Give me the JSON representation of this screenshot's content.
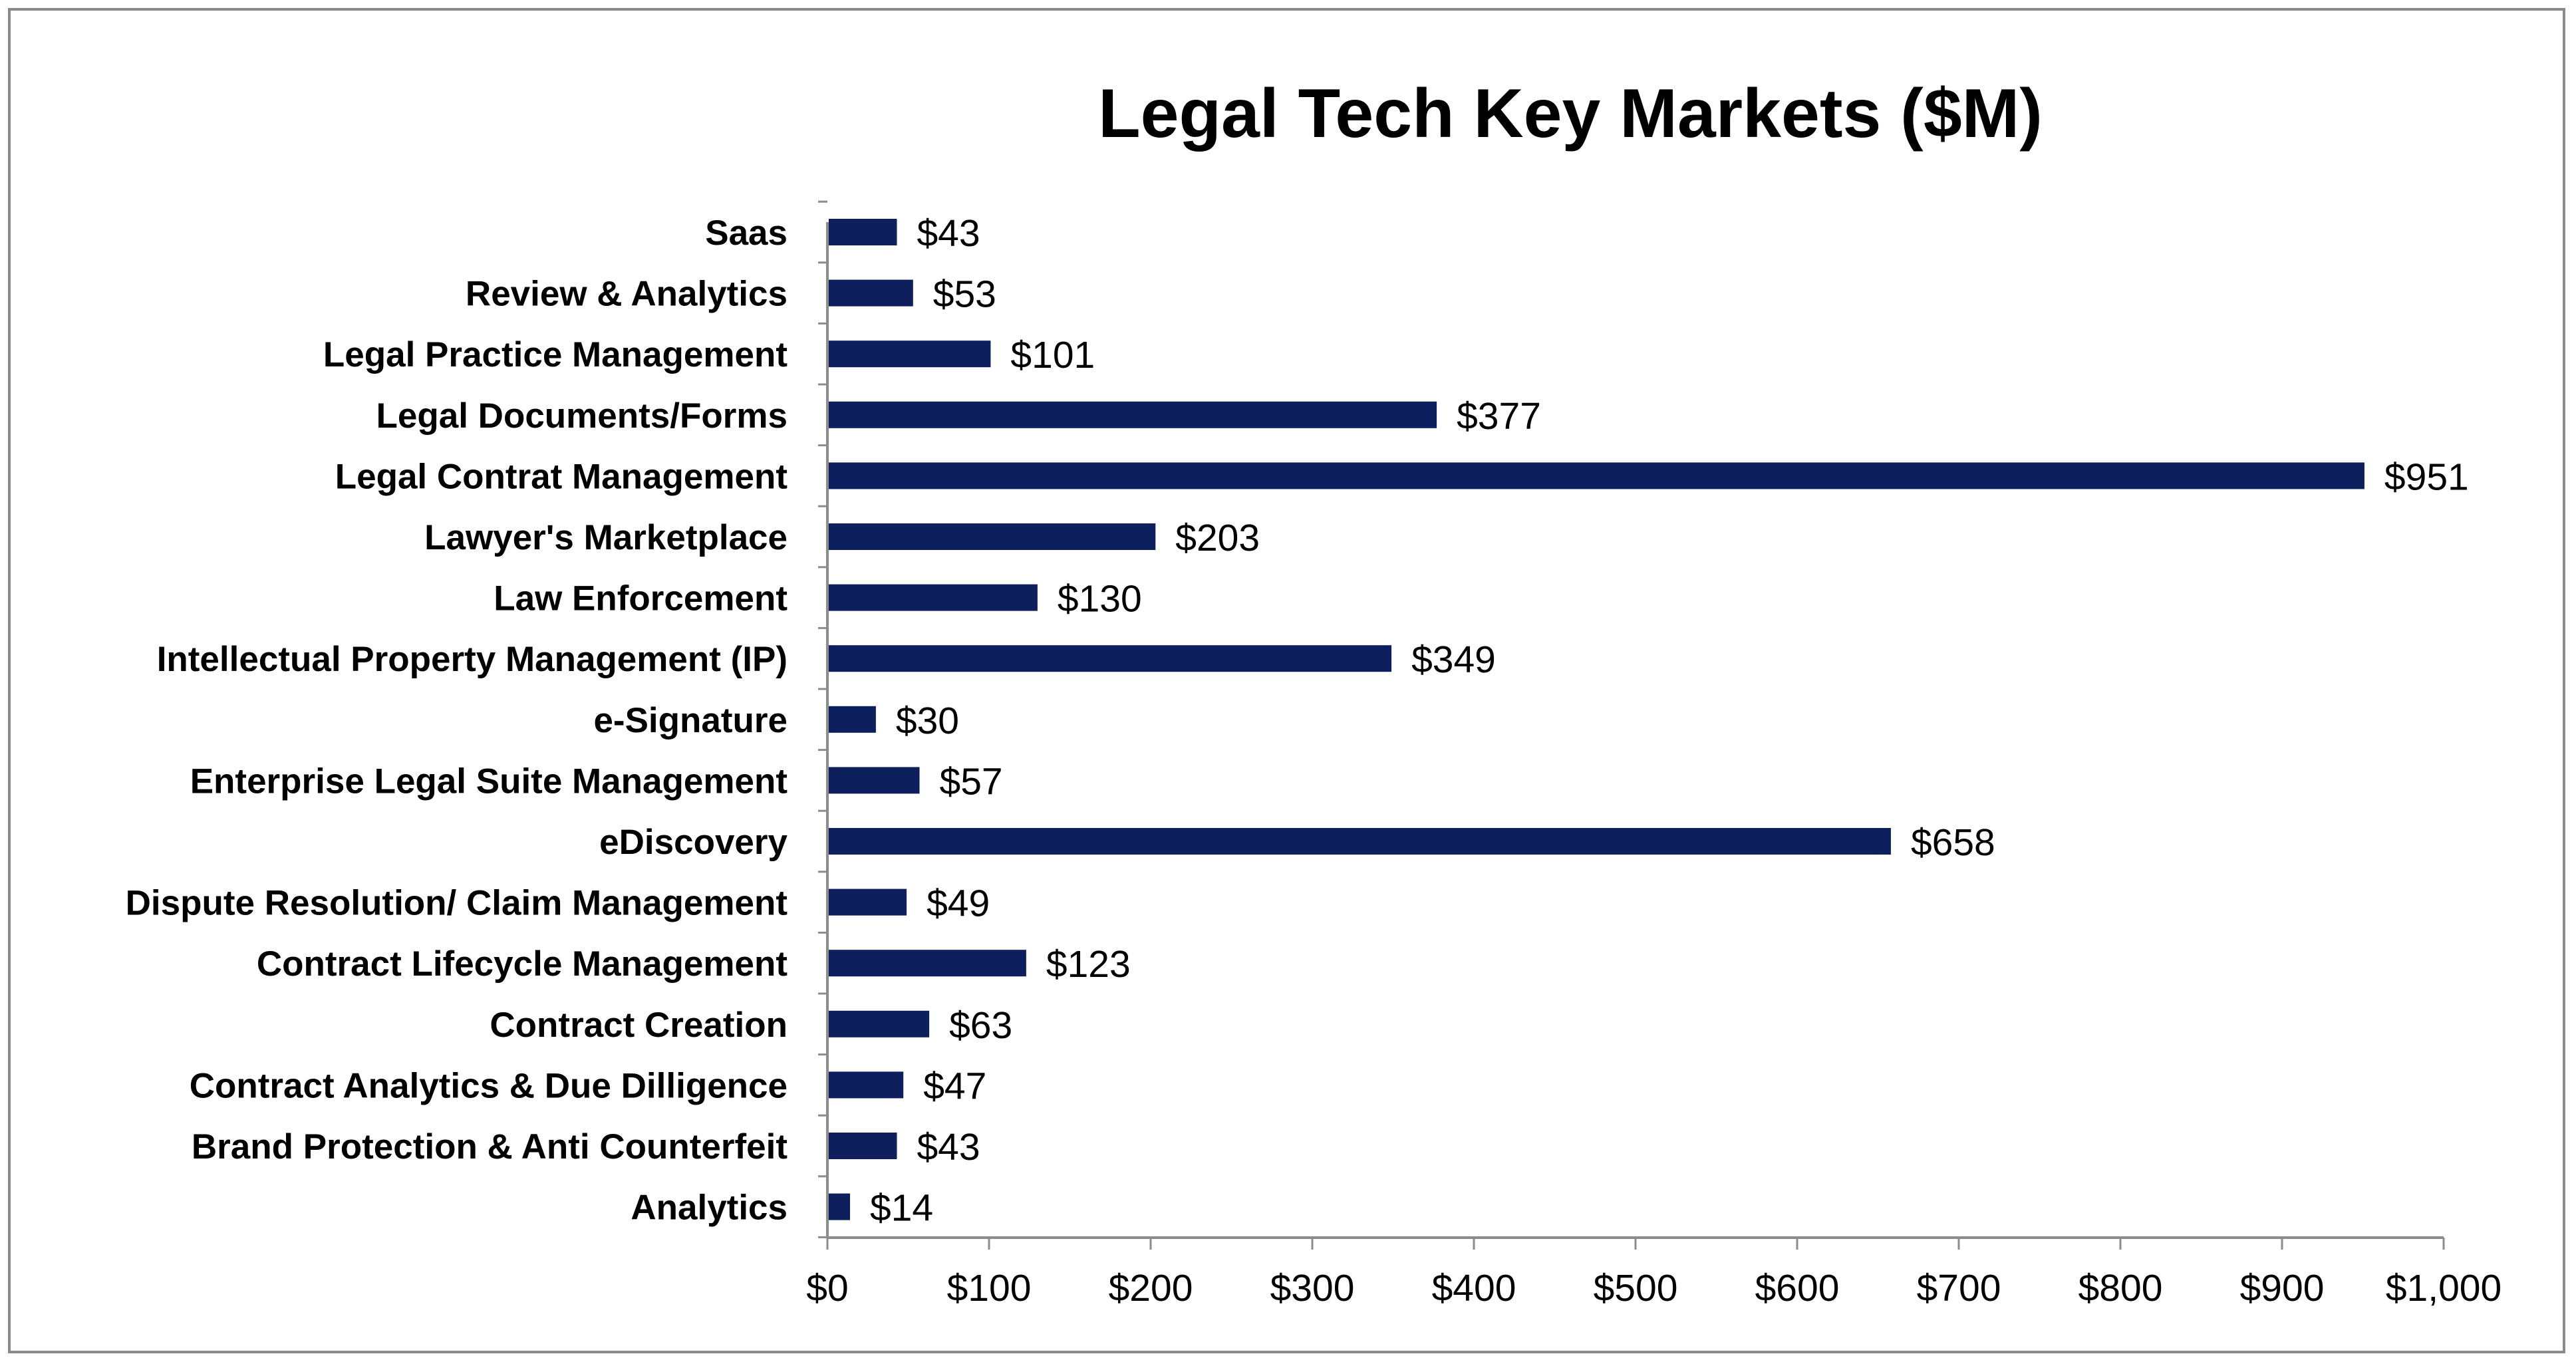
{
  "chart_data": {
    "type": "bar",
    "orientation": "horizontal",
    "title": "Legal Tech Key Markets ($M)",
    "xlabel": "",
    "ylabel": "",
    "categories": [
      "Saas",
      "Review & Analytics",
      "Legal Practice Management",
      "Legal Documents/Forms",
      "Legal Contrat Management",
      "Lawyer's Marketplace",
      "Law Enforcement",
      "Intellectual Property Management (IP)",
      "e-Signature",
      "Enterprise Legal Suite Management",
      "eDiscovery",
      "Dispute Resolution/ Claim Management",
      "Contract Lifecycle Management",
      "Contract Creation",
      "Contract Analytics & Due Dilligence",
      "Brand Protection & Anti Counterfeit",
      "Analytics"
    ],
    "values": [
      43,
      53,
      101,
      377,
      951,
      203,
      130,
      349,
      30,
      57,
      658,
      49,
      123,
      63,
      47,
      43,
      14
    ],
    "value_labels": [
      "$43",
      "$53",
      "$101",
      "$377",
      "$951",
      "$203",
      "$130",
      "$349",
      "$30",
      "$57",
      "$658",
      "$49",
      "$123",
      "$63",
      "$47",
      "$43",
      "$14"
    ],
    "xlim": [
      0,
      1000
    ],
    "x_ticks": [
      0,
      100,
      200,
      300,
      400,
      500,
      600,
      700,
      800,
      900,
      1000
    ],
    "x_tick_labels": [
      "$0",
      "$100",
      "$200",
      "$300",
      "$400",
      "$500",
      "$600",
      "$700",
      "$800",
      "$900",
      "$1,000"
    ],
    "grid": false,
    "legend": "none",
    "bar_color": "#0d1f5c",
    "data_labels": true
  }
}
